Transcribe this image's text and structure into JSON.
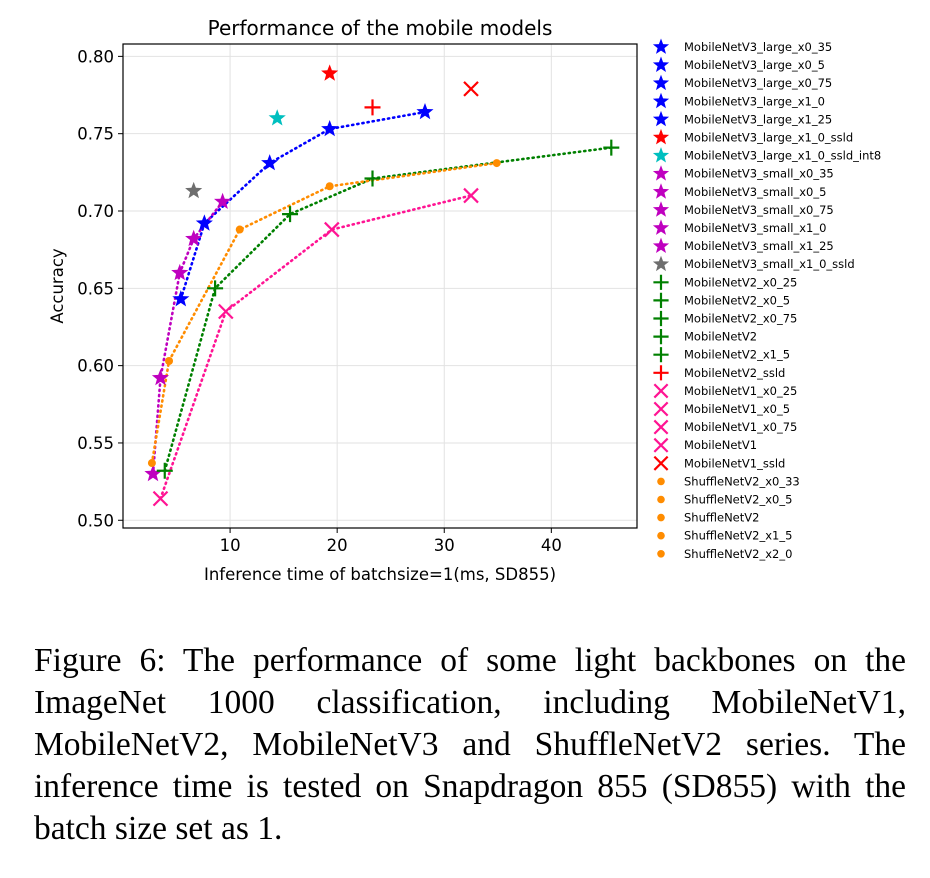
{
  "chart_data": {
    "type": "scatter",
    "title": "Performance of the mobile models",
    "xlabel": "Inference time of batchsize=1(ms, SD855)",
    "ylabel": "Accuracy",
    "xlim": [
      0,
      48
    ],
    "ylim": [
      0.495,
      0.808
    ],
    "xticks": [
      10,
      20,
      30,
      40
    ],
    "yticks": [
      0.5,
      0.55,
      0.6,
      0.65,
      0.7,
      0.75,
      0.8
    ],
    "xtick_labels": [
      "10",
      "20",
      "30",
      "40"
    ],
    "ytick_labels": [
      "0.50",
      "0.55",
      "0.60",
      "0.65",
      "0.70",
      "0.75",
      "0.80"
    ],
    "grid": true,
    "legend_position": "outside-right",
    "series": [
      {
        "name": "MobileNetV3_large_x0_35",
        "marker": "star",
        "color": "#0000ff",
        "x": [
          5.4
        ],
        "y": [
          0.643
        ]
      },
      {
        "name": "MobileNetV3_large_x0_5",
        "marker": "star",
        "color": "#0000ff",
        "x": [
          7.6
        ],
        "y": [
          0.692
        ]
      },
      {
        "name": "MobileNetV3_large_x0_75",
        "marker": "star",
        "color": "#0000ff",
        "x": [
          13.7
        ],
        "y": [
          0.731
        ]
      },
      {
        "name": "MobileNetV3_large_x1_0",
        "marker": "star",
        "color": "#0000ff",
        "x": [
          19.3
        ],
        "y": [
          0.753
        ]
      },
      {
        "name": "MobileNetV3_large_x1_25",
        "marker": "star",
        "color": "#0000ff",
        "x": [
          28.2
        ],
        "y": [
          0.764
        ]
      },
      {
        "name": "MobileNetV3_large_x1_0_ssld",
        "marker": "star",
        "color": "#ff0000",
        "x": [
          19.3
        ],
        "y": [
          0.789
        ]
      },
      {
        "name": "MobileNetV3_large_x1_0_ssld_int8",
        "marker": "star",
        "color": "#00bfbf",
        "x": [
          14.4
        ],
        "y": [
          0.76
        ]
      },
      {
        "name": "MobileNetV3_small_x0_35",
        "marker": "star",
        "color": "#bf00bf",
        "x": [
          2.8
        ],
        "y": [
          0.53
        ]
      },
      {
        "name": "MobileNetV3_small_x0_5",
        "marker": "star",
        "color": "#bf00bf",
        "x": [
          3.5
        ],
        "y": [
          0.592
        ]
      },
      {
        "name": "MobileNetV3_small_x0_75",
        "marker": "star",
        "color": "#bf00bf",
        "x": [
          5.3
        ],
        "y": [
          0.66
        ]
      },
      {
        "name": "MobileNetV3_small_x1_0",
        "marker": "star",
        "color": "#bf00bf",
        "x": [
          6.6
        ],
        "y": [
          0.682
        ]
      },
      {
        "name": "MobileNetV3_small_x1_25",
        "marker": "star",
        "color": "#bf00bf",
        "x": [
          9.3
        ],
        "y": [
          0.706
        ]
      },
      {
        "name": "MobileNetV3_small_x1_0_ssld",
        "marker": "star",
        "color": "#6e6e6e",
        "x": [
          6.6
        ],
        "y": [
          0.713
        ]
      },
      {
        "name": "MobileNetV2_x0_25",
        "marker": "plus",
        "color": "#008000",
        "x": [
          3.9
        ],
        "y": [
          0.532
        ]
      },
      {
        "name": "MobileNetV2_x0_5",
        "marker": "plus",
        "color": "#008000",
        "x": [
          8.6
        ],
        "y": [
          0.65
        ]
      },
      {
        "name": "MobileNetV2_x0_75",
        "marker": "plus",
        "color": "#008000",
        "x": [
          15.6
        ],
        "y": [
          0.698
        ]
      },
      {
        "name": "MobileNetV2",
        "marker": "plus",
        "color": "#008000",
        "x": [
          23.3
        ],
        "y": [
          0.721
        ]
      },
      {
        "name": "MobileNetV2_x1_5",
        "marker": "plus",
        "color": "#008000",
        "x": [
          45.6
        ],
        "y": [
          0.741
        ]
      },
      {
        "name": "MobileNetV2_ssld",
        "marker": "plus",
        "color": "#ff0000",
        "x": [
          23.3
        ],
        "y": [
          0.767
        ]
      },
      {
        "name": "MobileNetV1_x0_25",
        "marker": "x",
        "color": "#ff1493",
        "x": [
          3.5
        ],
        "y": [
          0.514
        ]
      },
      {
        "name": "MobileNetV1_x0_5",
        "marker": "x",
        "color": "#ff1493",
        "x": [
          9.6
        ],
        "y": [
          0.635
        ]
      },
      {
        "name": "MobileNetV1_x0_75",
        "marker": "x",
        "color": "#ff1493",
        "x": [
          19.5
        ],
        "y": [
          0.688
        ]
      },
      {
        "name": "MobileNetV1",
        "marker": "x",
        "color": "#ff1493",
        "x": [
          32.5
        ],
        "y": [
          0.71
        ]
      },
      {
        "name": "MobileNetV1_ssld",
        "marker": "x",
        "color": "#ff0000",
        "x": [
          32.5
        ],
        "y": [
          0.779
        ]
      },
      {
        "name": "ShuffleNetV2_x0_33",
        "marker": "dot",
        "color": "#ff8c00",
        "x": [
          2.7
        ],
        "y": [
          0.537
        ]
      },
      {
        "name": "ShuffleNetV2_x0_5",
        "marker": "dot",
        "color": "#ff8c00",
        "x": [
          4.3
        ],
        "y": [
          0.603
        ]
      },
      {
        "name": "ShuffleNetV2",
        "marker": "dot",
        "color": "#ff8c00",
        "x": [
          10.9
        ],
        "y": [
          0.688
        ]
      },
      {
        "name": "ShuffleNetV2_x1_5",
        "marker": "dot",
        "color": "#ff8c00",
        "x": [
          19.3
        ],
        "y": [
          0.716
        ]
      },
      {
        "name": "ShuffleNetV2_x2_0",
        "marker": "dot",
        "color": "#ff8c00",
        "x": [
          34.9
        ],
        "y": [
          0.731
        ]
      }
    ],
    "trend_lines": [
      {
        "color": "#0000ff",
        "x": [
          5.4,
          7.6,
          13.7,
          19.3,
          28.2
        ],
        "y": [
          0.643,
          0.692,
          0.731,
          0.753,
          0.764
        ]
      },
      {
        "color": "#bf00bf",
        "x": [
          2.8,
          3.5,
          5.3,
          6.6,
          9.3
        ],
        "y": [
          0.53,
          0.592,
          0.66,
          0.682,
          0.706
        ]
      },
      {
        "color": "#008000",
        "x": [
          3.9,
          8.6,
          15.6,
          23.3,
          45.6
        ],
        "y": [
          0.532,
          0.65,
          0.698,
          0.721,
          0.741
        ]
      },
      {
        "color": "#ff1493",
        "x": [
          3.5,
          9.6,
          19.5,
          32.5
        ],
        "y": [
          0.514,
          0.635,
          0.688,
          0.71
        ]
      },
      {
        "color": "#ff8c00",
        "x": [
          2.7,
          4.3,
          10.9,
          19.3,
          34.9
        ],
        "y": [
          0.537,
          0.603,
          0.688,
          0.716,
          0.731
        ]
      }
    ]
  },
  "caption": {
    "text": "Figure 6: The performance of some light backbones on the ImageNet 1000 classification, including MobileNetV1, MobileNetV2, MobileNetV3 and ShuffleNetV2 series. The inference time is tested on Snapdragon 855 (SD855) with the batch size set as 1."
  }
}
